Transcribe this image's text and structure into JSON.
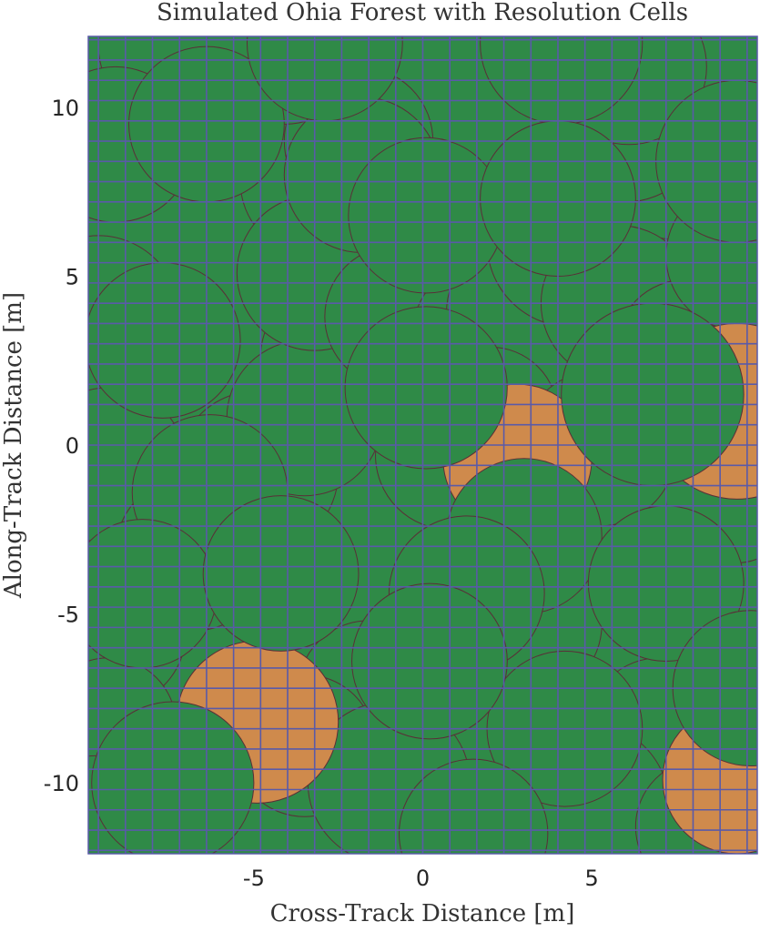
{
  "chart_data": {
    "type": "scatter",
    "title": "Simulated Ohia Forest with Resolution Cells",
    "xlabel": "Cross-Track Distance [m]",
    "ylabel": "Along-Track Distance [m]",
    "xlim": [
      -9.9,
      9.9
    ],
    "ylim": [
      -12.1,
      12.1
    ],
    "xticks": [
      -5,
      0,
      5
    ],
    "yticks": [
      -10,
      -5,
      0,
      5,
      10
    ],
    "grid": {
      "x_spacing_m": 0.8,
      "y_spacing_m": 0.6,
      "color": "#5a5aa8",
      "description": "resolution cell grid"
    },
    "colors": {
      "background": "#2f8a47",
      "healthy_crown": "#2f8a47",
      "dead_crown": "#cf8a4c",
      "crown_edge": "#5a2e38",
      "grid": "#5a5aa8"
    },
    "crowns": [
      {
        "x": -8.6,
        "y": -8.8,
        "r": 2.4,
        "state": "healthy"
      },
      {
        "x": -7.5,
        "y": 11.8,
        "r": 2.1,
        "state": "healthy"
      },
      {
        "x": -9.1,
        "y": 8.9,
        "r": 2.3,
        "state": "healthy"
      },
      {
        "x": -9.6,
        "y": 3.8,
        "r": 2.4,
        "state": "healthy"
      },
      {
        "x": -9.3,
        "y": -0.6,
        "r": 2.3,
        "state": "healthy"
      },
      {
        "x": -4.9,
        "y": -0.8,
        "r": 2.4,
        "state": "healthy"
      },
      {
        "x": -2.6,
        "y": 2.6,
        "r": 2.2,
        "state": "healthy"
      },
      {
        "x": -3.5,
        "y": 0.8,
        "r": 2.3,
        "state": "healthy"
      },
      {
        "x": -3.2,
        "y": 7.8,
        "r": 2.2,
        "state": "healthy"
      },
      {
        "x": -1.9,
        "y": 9.0,
        "r": 2.2,
        "state": "healthy"
      },
      {
        "x": -3.2,
        "y": 5.1,
        "r": 2.3,
        "state": "healthy"
      },
      {
        "x": -0.8,
        "y": 3.8,
        "r": 2.1,
        "state": "healthy"
      },
      {
        "x": 1.8,
        "y": 3.3,
        "r": 2.1,
        "state": "healthy"
      },
      {
        "x": 3.0,
        "y": 5.7,
        "r": 2.1,
        "state": "healthy"
      },
      {
        "x": 3.1,
        "y": 3.9,
        "r": 2.4,
        "state": "healthy"
      },
      {
        "x": 4.4,
        "y": 6.0,
        "r": 2.5,
        "state": "healthy"
      },
      {
        "x": 6.0,
        "y": 6.2,
        "r": 2.2,
        "state": "healthy"
      },
      {
        "x": 7.4,
        "y": 8.4,
        "r": 2.3,
        "state": "healthy"
      },
      {
        "x": 6.0,
        "y": 9.6,
        "r": 2.4,
        "state": "healthy"
      },
      {
        "x": 5.8,
        "y": 4.2,
        "r": 2.3,
        "state": "healthy"
      },
      {
        "x": 6.8,
        "y": -2.7,
        "r": 2.2,
        "state": "healthy"
      },
      {
        "x": 9.6,
        "y": -3.7,
        "r": 2.1,
        "state": "healthy"
      },
      {
        "x": 9.2,
        "y": -1.5,
        "r": 2.0,
        "state": "healthy"
      },
      {
        "x": 5.8,
        "y": -6.3,
        "r": 2.1,
        "state": "healthy"
      },
      {
        "x": 7.0,
        "y": -8.4,
        "r": 2.1,
        "state": "healthy"
      },
      {
        "x": 4.8,
        "y": -10.7,
        "r": 2.5,
        "state": "healthy"
      },
      {
        "x": 1.3,
        "y": -7.9,
        "r": 2.3,
        "state": "healthy"
      },
      {
        "x": -1.6,
        "y": -7.3,
        "r": 2.1,
        "state": "healthy"
      },
      {
        "x": -3.5,
        "y": -8.9,
        "r": 2.1,
        "state": "healthy"
      },
      {
        "x": -6.3,
        "y": -6.2,
        "r": 2.2,
        "state": "healthy"
      },
      {
        "x": -9.3,
        "y": -5.5,
        "r": 2.3,
        "state": "healthy"
      },
      {
        "x": -9.3,
        "y": -8.3,
        "r": 2.0,
        "state": "healthy"
      },
      {
        "x": -6.8,
        "y": -3.2,
        "r": 2.3,
        "state": "healthy"
      },
      {
        "x": 3.1,
        "y": -5.3,
        "r": 2.2,
        "state": "healthy"
      },
      {
        "x": 4.2,
        "y": -8.4,
        "r": 2.3,
        "state": "healthy"
      },
      {
        "x": 0.8,
        "y": -0.3,
        "r": 2.2,
        "state": "healthy"
      },
      {
        "x": 2.0,
        "y": 0.9,
        "r": 2.0,
        "state": "healthy"
      },
      {
        "x": 5.2,
        "y": -0.1,
        "r": 2.3,
        "state": "healthy"
      },
      {
        "x": 7.8,
        "y": 2.8,
        "r": 2.1,
        "state": "healthy"
      },
      {
        "x": 9.4,
        "y": 5.6,
        "r": 2.2,
        "state": "healthy"
      },
      {
        "x": -9.7,
        "y": -11.0,
        "r": 1.8,
        "state": "healthy"
      },
      {
        "x": -1.0,
        "y": -10.0,
        "r": 2.4,
        "state": "healthy"
      },
      {
        "x": 1.5,
        "y": -11.5,
        "r": 2.2,
        "state": "healthy"
      },
      {
        "x": 8.3,
        "y": -11.3,
        "r": 2.0,
        "state": "healthy"
      },
      {
        "x": 2.8,
        "y": -0.4,
        "r": 2.2,
        "state": "dead"
      },
      {
        "x": 9.3,
        "y": 1.0,
        "r": 2.6,
        "state": "dead"
      },
      {
        "x": -4.9,
        "y": -8.2,
        "r": 2.4,
        "state": "dead"
      },
      {
        "x": 9.3,
        "y": -9.9,
        "r": 2.2,
        "state": "dead"
      },
      {
        "x": -4.1,
        "y": 11.8,
        "r": 2.3,
        "state": "healthy"
      },
      {
        "x": -6.4,
        "y": 9.5,
        "r": 2.3,
        "state": "healthy"
      },
      {
        "x": 6.1,
        "y": 11.2,
        "r": 2.3,
        "state": "healthy"
      },
      {
        "x": -1.8,
        "y": 8.0,
        "r": 2.3,
        "state": "healthy"
      },
      {
        "x": 4.1,
        "y": 11.9,
        "r": 2.4,
        "state": "healthy"
      },
      {
        "x": -2.9,
        "y": 11.9,
        "r": 2.3,
        "state": "healthy"
      },
      {
        "x": 9.3,
        "y": 8.4,
        "r": 2.4,
        "state": "healthy"
      },
      {
        "x": 0.1,
        "y": 6.8,
        "r": 2.3,
        "state": "healthy"
      },
      {
        "x": 4.0,
        "y": 7.3,
        "r": 2.3,
        "state": "healthy"
      },
      {
        "x": -7.7,
        "y": 3.1,
        "r": 2.3,
        "state": "healthy"
      },
      {
        "x": 6.8,
        "y": 1.5,
        "r": 2.7,
        "state": "healthy"
      },
      {
        "x": 0.1,
        "y": 1.7,
        "r": 2.4,
        "state": "healthy"
      },
      {
        "x": -6.3,
        "y": -1.4,
        "r": 2.3,
        "state": "healthy"
      },
      {
        "x": -8.3,
        "y": -4.4,
        "r": 2.2,
        "state": "healthy"
      },
      {
        "x": 3.0,
        "y": -2.7,
        "r": 2.3,
        "state": "healthy"
      },
      {
        "x": 7.2,
        "y": -4.1,
        "r": 2.3,
        "state": "healthy"
      },
      {
        "x": -4.2,
        "y": -3.8,
        "r": 2.3,
        "state": "healthy"
      },
      {
        "x": 1.3,
        "y": -4.4,
        "r": 2.3,
        "state": "healthy"
      },
      {
        "x": 9.7,
        "y": -7.2,
        "r": 2.3,
        "state": "healthy"
      },
      {
        "x": 0.2,
        "y": -6.4,
        "r": 2.3,
        "state": "healthy"
      },
      {
        "x": -7.4,
        "y": -10.0,
        "r": 2.4,
        "state": "healthy"
      }
    ]
  }
}
